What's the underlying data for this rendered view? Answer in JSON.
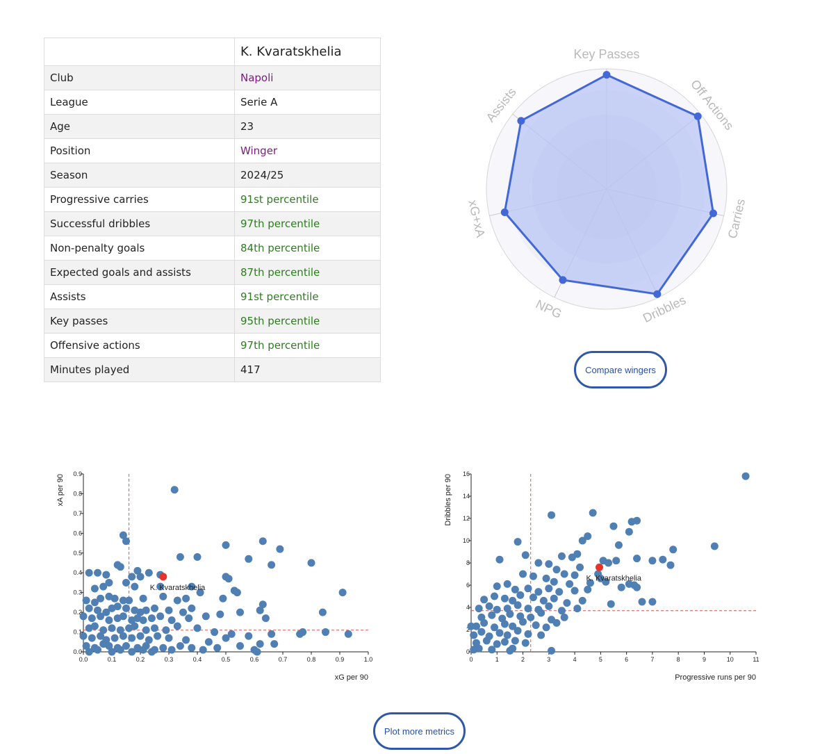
{
  "player_table": {
    "player_name": "K. Kvaratskhelia",
    "rows": [
      {
        "label": "Club",
        "value": "Napoli",
        "color": "#7b1a7e"
      },
      {
        "label": "League",
        "value": "Serie A",
        "color": "#222222"
      },
      {
        "label": "Age",
        "value": "23",
        "color": "#222222"
      },
      {
        "label": "Position",
        "value": "Winger",
        "color": "#7b1a7e"
      },
      {
        "label": "Season",
        "value": "2024/25",
        "color": "#222222"
      },
      {
        "label": "Progressive carries",
        "value": "91st percentile",
        "color": "#2d7d1e"
      },
      {
        "label": "Successful dribbles",
        "value": "97th percentile",
        "color": "#2d7d1e"
      },
      {
        "label": "Non-penalty goals",
        "value": "84th percentile",
        "color": "#2d7d1e"
      },
      {
        "label": "Expected goals and assists",
        "value": "87th percentile",
        "color": "#2d7d1e"
      },
      {
        "label": "Assists",
        "value": "91st percentile",
        "color": "#2d7d1e"
      },
      {
        "label": "Key passes",
        "value": "95th percentile",
        "color": "#2d7d1e"
      },
      {
        "label": "Offensive actions",
        "value": "97th percentile",
        "color": "#2d7d1e"
      },
      {
        "label": "Minutes played",
        "value": "417",
        "color": "#222222"
      }
    ]
  },
  "buttons": {
    "compare": "Compare wingers",
    "plot_more": "Plot more metrics"
  },
  "chart_data": [
    {
      "type": "radar",
      "axes": [
        "Key Passes",
        "Off Actions",
        "Carries",
        "Dribbles",
        "NPG",
        "xG+xA",
        "Assists"
      ],
      "values": [
        95,
        97,
        91,
        97,
        84,
        87,
        91
      ],
      "range": [
        0,
        100
      ],
      "fill_color": "#b6c3f5",
      "line_color": "#4267d6"
    },
    {
      "type": "scatter",
      "xlabel": "xG per 90",
      "ylabel": "xA per 90",
      "xlim": [
        0,
        1.0
      ],
      "ylim": [
        0,
        0.9
      ],
      "xticks": [
        "0.0",
        "0.1",
        "0.2",
        "0.3",
        "0.4",
        "0.5",
        "0.6",
        "0.7",
        "0.8",
        "0.9",
        "1.0"
      ],
      "yticks": [
        "0.0",
        "0.1",
        "0.2",
        "0.3",
        "0.4",
        "0.5",
        "0.6",
        "0.7",
        "0.8",
        "0.9"
      ],
      "ref_x": 0.16,
      "ref_y": 0.11,
      "highlight": {
        "label": "K. Kvaratskhelia",
        "x": 0.28,
        "y": 0.38
      },
      "point_color": "#4f7fb3",
      "highlight_color": "#e8322b",
      "points": [
        [
          0.32,
          0.82
        ],
        [
          0.14,
          0.59
        ],
        [
          0.15,
          0.56
        ],
        [
          0.63,
          0.56
        ],
        [
          0.5,
          0.54
        ],
        [
          0.69,
          0.52
        ],
        [
          0.34,
          0.48
        ],
        [
          0.4,
          0.48
        ],
        [
          0.58,
          0.47
        ],
        [
          0.8,
          0.45
        ],
        [
          0.12,
          0.44
        ],
        [
          0.13,
          0.43
        ],
        [
          0.66,
          0.44
        ],
        [
          0.19,
          0.41
        ],
        [
          0.23,
          0.4
        ],
        [
          0.27,
          0.39
        ],
        [
          0.02,
          0.4
        ],
        [
          0.05,
          0.4
        ],
        [
          0.08,
          0.39
        ],
        [
          0.17,
          0.38
        ],
        [
          0.2,
          0.38
        ],
        [
          0.5,
          0.38
        ],
        [
          0.51,
          0.37
        ],
        [
          0.09,
          0.35
        ],
        [
          0.15,
          0.35
        ],
        [
          0.04,
          0.32
        ],
        [
          0.07,
          0.33
        ],
        [
          0.18,
          0.33
        ],
        [
          0.27,
          0.33
        ],
        [
          0.38,
          0.33
        ],
        [
          0.41,
          0.3
        ],
        [
          0.53,
          0.31
        ],
        [
          0.54,
          0.3
        ],
        [
          0.91,
          0.3
        ],
        [
          0.01,
          0.26
        ],
        [
          0.04,
          0.25
        ],
        [
          0.06,
          0.27
        ],
        [
          0.09,
          0.28
        ],
        [
          0.11,
          0.27
        ],
        [
          0.14,
          0.26
        ],
        [
          0.16,
          0.26
        ],
        [
          0.21,
          0.27
        ],
        [
          0.28,
          0.28
        ],
        [
          0.33,
          0.26
        ],
        [
          0.36,
          0.27
        ],
        [
          0.49,
          0.27
        ],
        [
          0.63,
          0.24
        ],
        [
          0.02,
          0.22
        ],
        [
          0.05,
          0.21
        ],
        [
          0.08,
          0.2
        ],
        [
          0.1,
          0.22
        ],
        [
          0.12,
          0.23
        ],
        [
          0.15,
          0.22
        ],
        [
          0.18,
          0.21
        ],
        [
          0.2,
          0.2
        ],
        [
          0.22,
          0.21
        ],
        [
          0.25,
          0.22
        ],
        [
          0.3,
          0.21
        ],
        [
          0.35,
          0.2
        ],
        [
          0.38,
          0.22
        ],
        [
          0.48,
          0.19
        ],
        [
          0.55,
          0.2
        ],
        [
          0.62,
          0.21
        ],
        [
          0.84,
          0.2
        ],
        [
          0.0,
          0.18
        ],
        [
          0.03,
          0.17
        ],
        [
          0.06,
          0.18
        ],
        [
          0.09,
          0.16
        ],
        [
          0.12,
          0.17
        ],
        [
          0.14,
          0.18
        ],
        [
          0.17,
          0.16
        ],
        [
          0.19,
          0.17
        ],
        [
          0.21,
          0.16
        ],
        [
          0.24,
          0.17
        ],
        [
          0.27,
          0.18
        ],
        [
          0.31,
          0.16
        ],
        [
          0.37,
          0.17
        ],
        [
          0.43,
          0.18
        ],
        [
          0.64,
          0.17
        ],
        [
          0.02,
          0.12
        ],
        [
          0.04,
          0.13
        ],
        [
          0.07,
          0.11
        ],
        [
          0.1,
          0.12
        ],
        [
          0.13,
          0.11
        ],
        [
          0.16,
          0.12
        ],
        [
          0.18,
          0.13
        ],
        [
          0.22,
          0.11
        ],
        [
          0.25,
          0.12
        ],
        [
          0.29,
          0.11
        ],
        [
          0.33,
          0.13
        ],
        [
          0.4,
          0.12
        ],
        [
          0.46,
          0.1
        ],
        [
          0.52,
          0.09
        ],
        [
          0.58,
          0.08
        ],
        [
          0.66,
          0.09
        ],
        [
          0.76,
          0.09
        ],
        [
          0.77,
          0.1
        ],
        [
          0.85,
          0.1
        ],
        [
          0.93,
          0.09
        ],
        [
          0.0,
          0.08
        ],
        [
          0.03,
          0.07
        ],
        [
          0.06,
          0.08
        ],
        [
          0.08,
          0.06
        ],
        [
          0.11,
          0.07
        ],
        [
          0.14,
          0.08
        ],
        [
          0.17,
          0.07
        ],
        [
          0.2,
          0.08
        ],
        [
          0.23,
          0.06
        ],
        [
          0.26,
          0.08
        ],
        [
          0.3,
          0.07
        ],
        [
          0.36,
          0.06
        ],
        [
          0.44,
          0.05
        ],
        [
          0.5,
          0.07
        ],
        [
          0.62,
          0.04
        ],
        [
          0.01,
          0.03
        ],
        [
          0.04,
          0.02
        ],
        [
          0.07,
          0.04
        ],
        [
          0.09,
          0.03
        ],
        [
          0.12,
          0.02
        ],
        [
          0.15,
          0.03
        ],
        [
          0.19,
          0.02
        ],
        [
          0.22,
          0.03
        ],
        [
          0.25,
          0.01
        ],
        [
          0.28,
          0.02
        ],
        [
          0.34,
          0.03
        ],
        [
          0.38,
          0.02
        ],
        [
          0.42,
          0.01
        ],
        [
          0.47,
          0.02
        ],
        [
          0.55,
          0.03
        ],
        [
          0.6,
          0.01
        ],
        [
          0.67,
          0.04
        ],
        [
          0.02,
          0.0
        ],
        [
          0.05,
          0.01
        ],
        [
          0.1,
          0.0
        ],
        [
          0.13,
          0.01
        ],
        [
          0.17,
          0.0
        ],
        [
          0.21,
          0.01
        ],
        [
          0.24,
          0.0
        ],
        [
          0.31,
          0.01
        ],
        [
          0.61,
          0.0
        ]
      ]
    },
    {
      "type": "scatter",
      "xlabel": "Progressive runs per 90",
      "ylabel": "Dribbles per 90",
      "xlim": [
        0,
        11
      ],
      "ylim": [
        0,
        16
      ],
      "xticks": [
        "0",
        "1",
        "2",
        "3",
        "4",
        "5",
        "6",
        "7",
        "8",
        "9",
        "10",
        "11"
      ],
      "yticks": [
        "0",
        "2",
        "4",
        "6",
        "8",
        "10",
        "12",
        "14",
        "16"
      ],
      "ref_x": 2.3,
      "ref_y": 3.7,
      "highlight": {
        "label": "K. Kvaratskhelia",
        "x": 4.95,
        "y": 7.6
      },
      "point_color": "#4f7fb3",
      "highlight_color": "#e8322b",
      "points": [
        [
          10.6,
          15.8
        ],
        [
          4.7,
          12.5
        ],
        [
          3.1,
          12.3
        ],
        [
          6.4,
          11.8
        ],
        [
          6.2,
          11.7
        ],
        [
          5.5,
          11.3
        ],
        [
          4.5,
          10.4
        ],
        [
          4.3,
          10.0
        ],
        [
          1.8,
          9.9
        ],
        [
          6.1,
          10.8
        ],
        [
          5.7,
          9.6
        ],
        [
          9.4,
          9.5
        ],
        [
          7.8,
          9.2
        ],
        [
          4.1,
          8.8
        ],
        [
          1.1,
          8.3
        ],
        [
          2.1,
          8.7
        ],
        [
          3.5,
          8.6
        ],
        [
          3.9,
          8.5
        ],
        [
          5.1,
          8.2
        ],
        [
          5.3,
          8.0
        ],
        [
          5.6,
          8.2
        ],
        [
          6.4,
          8.4
        ],
        [
          7.0,
          8.2
        ],
        [
          7.4,
          8.3
        ],
        [
          7.7,
          7.8
        ],
        [
          4.2,
          7.6
        ],
        [
          3.0,
          7.9
        ],
        [
          3.3,
          7.4
        ],
        [
          2.6,
          8.0
        ],
        [
          4.9,
          7.0
        ],
        [
          5.0,
          6.6
        ],
        [
          4.0,
          6.9
        ],
        [
          3.6,
          7.0
        ],
        [
          2.0,
          7.0
        ],
        [
          2.4,
          6.8
        ],
        [
          2.9,
          6.6
        ],
        [
          3.2,
          6.3
        ],
        [
          3.8,
          6.1
        ],
        [
          4.6,
          6.2
        ],
        [
          5.2,
          6.3
        ],
        [
          5.8,
          5.8
        ],
        [
          6.1,
          6.1
        ],
        [
          6.4,
          5.8
        ],
        [
          6.3,
          6.0
        ],
        [
          1.0,
          5.9
        ],
        [
          1.4,
          6.1
        ],
        [
          1.7,
          5.6
        ],
        [
          2.2,
          5.7
        ],
        [
          2.6,
          5.4
        ],
        [
          3.0,
          5.7
        ],
        [
          3.4,
          5.4
        ],
        [
          4.0,
          5.5
        ],
        [
          4.5,
          5.6
        ],
        [
          6.6,
          4.5
        ],
        [
          7.0,
          4.5
        ],
        [
          5.4,
          4.3
        ],
        [
          0.5,
          4.7
        ],
        [
          0.9,
          5.0
        ],
        [
          1.3,
          4.8
        ],
        [
          1.6,
          4.6
        ],
        [
          1.9,
          5.1
        ],
        [
          2.4,
          4.9
        ],
        [
          2.8,
          4.6
        ],
        [
          3.2,
          4.8
        ],
        [
          3.7,
          4.4
        ],
        [
          4.3,
          4.6
        ],
        [
          0.3,
          3.9
        ],
        [
          0.7,
          4.1
        ],
        [
          1.0,
          3.8
        ],
        [
          1.4,
          3.9
        ],
        [
          1.8,
          4.2
        ],
        [
          2.2,
          3.9
        ],
        [
          2.6,
          3.8
        ],
        [
          3.0,
          4.1
        ],
        [
          3.5,
          3.7
        ],
        [
          4.1,
          3.9
        ],
        [
          0.4,
          3.1
        ],
        [
          0.8,
          3.3
        ],
        [
          1.2,
          3.0
        ],
        [
          1.5,
          3.4
        ],
        [
          1.9,
          3.2
        ],
        [
          2.3,
          3.1
        ],
        [
          2.7,
          3.5
        ],
        [
          3.1,
          2.9
        ],
        [
          3.6,
          3.1
        ],
        [
          0.2,
          2.3
        ],
        [
          0.5,
          2.6
        ],
        [
          0.9,
          2.2
        ],
        [
          1.3,
          2.5
        ],
        [
          1.6,
          2.3
        ],
        [
          2.0,
          2.7
        ],
        [
          2.5,
          2.4
        ],
        [
          2.9,
          2.2
        ],
        [
          3.3,
          2.6
        ],
        [
          0.1,
          1.5
        ],
        [
          0.4,
          1.8
        ],
        [
          0.7,
          1.4
        ],
        [
          1.1,
          1.7
        ],
        [
          1.4,
          1.5
        ],
        [
          1.8,
          1.9
        ],
        [
          2.2,
          1.6
        ],
        [
          2.7,
          1.5
        ],
        [
          0.2,
          0.8
        ],
        [
          0.6,
          1.0
        ],
        [
          1.0,
          0.7
        ],
        [
          1.3,
          0.9
        ],
        [
          1.7,
          1.0
        ],
        [
          2.1,
          0.8
        ],
        [
          0.1,
          0.2
        ],
        [
          0.3,
          0.3
        ],
        [
          0.8,
          0.2
        ],
        [
          1.5,
          0.1
        ],
        [
          1.6,
          0.3
        ],
        [
          3.1,
          0.1
        ],
        [
          0.0,
          2.3
        ]
      ]
    }
  ]
}
